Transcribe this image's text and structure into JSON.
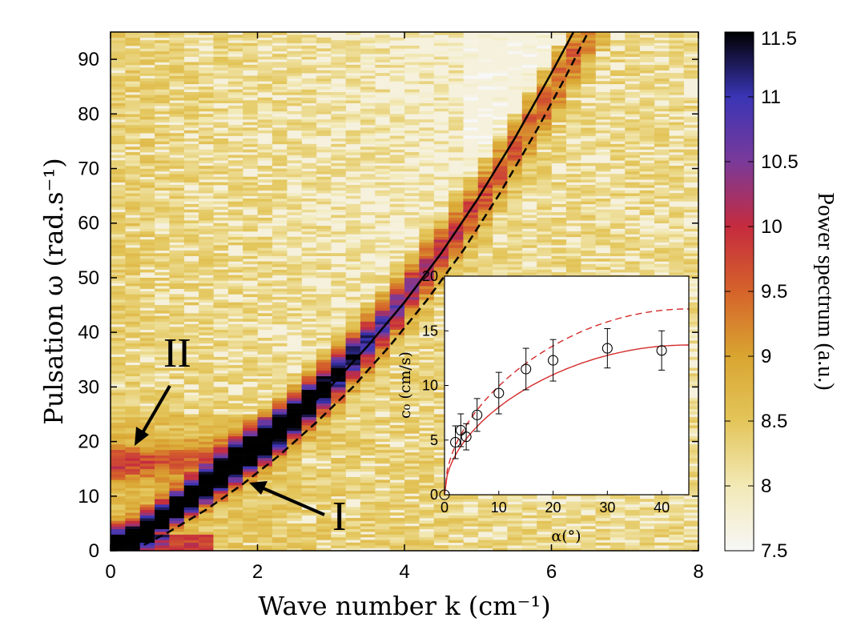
{
  "chart_data": [
    {
      "type": "heatmap",
      "xlabel": "Wave number k (cm⁻¹)",
      "ylabel": "Pulsation ω (rad.s⁻¹)",
      "xlim": [
        0,
        8
      ],
      "ylim": [
        0,
        95
      ],
      "x_ticks": [
        "0",
        "2",
        "4",
        "6",
        "8"
      ],
      "y_ticks": [
        "0",
        "10",
        "20",
        "30",
        "40",
        "50",
        "60",
        "70",
        "80",
        "90"
      ],
      "colorbar": {
        "label": "Power spectrum (a.u.)",
        "range": [
          7.5,
          11.5
        ],
        "ticks": [
          "7.5",
          "8",
          "8.5",
          "9",
          "9.5",
          "10",
          "10.5",
          "11",
          "11.5"
        ],
        "colormap": [
          "#f7f7f7",
          "#f2e9b6",
          "#e3c55a",
          "#d9a531",
          "#d5632a",
          "#c52b3e",
          "#7a3a9a",
          "#3a35b5",
          "#000000"
        ]
      },
      "branches": [
        {
          "name": "I",
          "points": [
            [
              0.2,
              2
            ],
            [
              0.6,
              5
            ],
            [
              1.0,
              9
            ],
            [
              1.4,
              13
            ],
            [
              1.8,
              17
            ],
            [
              2.2,
              21
            ],
            [
              2.6,
              26
            ],
            [
              3.0,
              31
            ],
            [
              3.4,
              37
            ],
            [
              3.8,
              43
            ],
            [
              4.2,
              50
            ],
            [
              4.6,
              57
            ],
            [
              5.0,
              64
            ],
            [
              5.4,
              72
            ],
            [
              5.8,
              80
            ],
            [
              6.2,
              89
            ]
          ]
        },
        {
          "name": "II",
          "points": [
            [
              0.2,
              16
            ],
            [
              0.6,
              16
            ],
            [
              1.0,
              17
            ],
            [
              1.4,
              18
            ],
            [
              1.8,
              20
            ],
            [
              2.2,
              23
            ],
            [
              2.6,
              26
            ]
          ]
        }
      ],
      "curves": [
        {
          "style": "solid",
          "points": [
            [
              0,
              0
            ],
            [
              0.5,
              3.8
            ],
            [
              1,
              8.2
            ],
            [
              1.5,
              12.8
            ],
            [
              2,
              18
            ],
            [
              2.5,
              23.8
            ],
            [
              3,
              30.2
            ],
            [
              3.5,
              37.5
            ],
            [
              4,
              45.5
            ],
            [
              4.5,
              54.5
            ],
            [
              5,
              64.5
            ],
            [
              5.5,
              75.5
            ],
            [
              6,
              87.5
            ],
            [
              6.3,
              95
            ]
          ]
        },
        {
          "style": "dashed",
          "points": [
            [
              0.3,
              0
            ],
            [
              0.8,
              3.5
            ],
            [
              1.3,
              7.5
            ],
            [
              1.8,
              12.2
            ],
            [
              2.3,
              17.5
            ],
            [
              2.8,
              23.5
            ],
            [
              3.3,
              30
            ],
            [
              3.8,
              37.5
            ],
            [
              4.3,
              45.8
            ],
            [
              4.8,
              55
            ],
            [
              5.3,
              65.5
            ],
            [
              5.8,
              77
            ],
            [
              6.2,
              87
            ],
            [
              6.5,
              95
            ]
          ]
        }
      ],
      "annotations": [
        {
          "text": "I",
          "arrow_to": [
            1.9,
            12.5
          ]
        },
        {
          "text": "II",
          "arrow_to": [
            0.35,
            19
          ]
        }
      ]
    },
    {
      "type": "scatter",
      "title": "",
      "xlabel": "α(°)",
      "ylabel": "c₀ (cm/s)",
      "xlim": [
        0,
        45
      ],
      "ylim": [
        0,
        20
      ],
      "x_ticks": [
        "0",
        "10",
        "20",
        "30",
        "40"
      ],
      "y_ticks": [
        "0",
        "5",
        "10",
        "15",
        "20"
      ],
      "points": [
        {
          "x": 0,
          "y": 0,
          "err": 0
        },
        {
          "x": 2,
          "y": 4.8,
          "err": 1.5
        },
        {
          "x": 3,
          "y": 5.9,
          "err": 1.5
        },
        {
          "x": 4,
          "y": 5.3,
          "err": 1.2
        },
        {
          "x": 6,
          "y": 7.3,
          "err": 1.5
        },
        {
          "x": 10,
          "y": 9.3,
          "err": 1.9
        },
        {
          "x": 15,
          "y": 11.5,
          "err": 1.9
        },
        {
          "x": 20,
          "y": 12.3,
          "err": 1.9
        },
        {
          "x": 30,
          "y": 13.4,
          "err": 1.8
        },
        {
          "x": 40,
          "y": 13.2,
          "err": 1.8
        }
      ],
      "fits": [
        {
          "style": "solid",
          "color": "#d42a2a",
          "amplitude": 13.7
        },
        {
          "style": "dashed",
          "color": "#d42a2a",
          "amplitude": 17.0
        }
      ]
    }
  ]
}
